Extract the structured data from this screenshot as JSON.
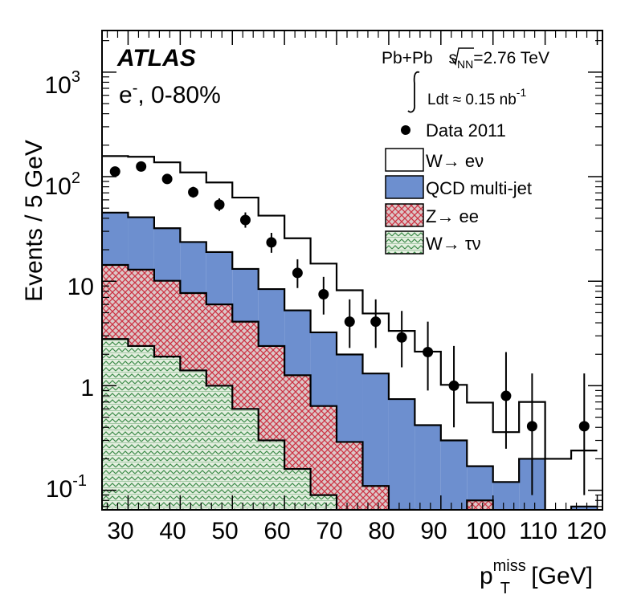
{
  "chart_data": {
    "type": "bar",
    "title": "",
    "experiment": "ATLAS",
    "collision_prefix": "Pb+Pb ",
    "sqrt_s_label": "s",
    "sqrt_s_sub": "NN",
    "energy": "=2.76 TeV",
    "lumi_label": "Ldt ≈ 0.15 nb",
    "lumi_exp": "-1",
    "channel_e": "e",
    "channel_sup": "-",
    "channel_rest": ", 0-80%",
    "ylabel": "Events / 5 GeV",
    "xlabel_p": "p",
    "xlabel_sup": "miss",
    "xlabel_sub": "T",
    "xlabel_unit": " [GeV]",
    "xlim": [
      25,
      121
    ],
    "ylim": [
      0.065,
      2500
    ],
    "yscale": "log",
    "x_ticks": [
      30,
      40,
      50,
      60,
      70,
      80,
      90,
      100,
      110,
      120
    ],
    "x_tick_labels": [
      "30",
      "40",
      "50",
      "60",
      "70",
      "80",
      "90",
      "100",
      "110",
      "120"
    ],
    "y_ticks": [
      {
        "value": 0.1,
        "base": "10",
        "exp": "-1"
      },
      {
        "value": 1,
        "base": "1",
        "exp": ""
      },
      {
        "value": 10,
        "base": "10",
        "exp": ""
      },
      {
        "value": 100,
        "base": "10",
        "exp": "2"
      },
      {
        "value": 1000,
        "base": "10",
        "exp": "3"
      }
    ],
    "bin_edges": [
      25,
      30,
      35,
      40,
      45,
      50,
      55,
      60,
      65,
      70,
      75,
      80,
      85,
      90,
      95,
      100,
      105,
      110,
      115,
      120
    ],
    "stack": [
      {
        "name": "W→ τν",
        "color": "#e4efe0",
        "values": [
          2.8,
          2.4,
          1.9,
          1.4,
          1.0,
          0.6,
          0.3,
          0.16,
          0.09,
          0.06,
          0,
          0,
          0,
          0,
          0,
          0,
          0,
          0,
          0
        ]
      },
      {
        "name": "Z→ ee",
        "color": "#dcc8c8",
        "values": [
          11.5,
          10.5,
          8.2,
          6.3,
          5.0,
          3.5,
          2.1,
          1.1,
          0.55,
          0.23,
          0.11,
          0.065,
          0.05,
          0.05,
          0.08,
          0,
          0,
          0,
          0
        ]
      },
      {
        "name": "QCD multi-jet",
        "color": "#6d8fcf",
        "values": [
          31,
          28,
          22,
          16,
          13,
          9.0,
          6.0,
          4.0,
          2.6,
          1.7,
          1.2,
          0.68,
          0.37,
          0.25,
          0.09,
          0.12,
          0.2,
          0,
          0.07
        ]
      },
      {
        "name": "W→ eν",
        "color": "#ffffff",
        "values": [
          112,
          114,
          105,
          86,
          69,
          50,
          34,
          20.5,
          11.5,
          6.2,
          3.6,
          2.6,
          1.7,
          0.72,
          0.52,
          0.24,
          0.5,
          0.2,
          0.17
        ]
      }
    ],
    "data_points": {
      "name": "Data 2011",
      "x": [
        27.5,
        32.5,
        37.5,
        42.5,
        47.5,
        52.5,
        57.5,
        62.5,
        67.5,
        72.5,
        77.5,
        82.5,
        87.5,
        92.5,
        102.5,
        107.5,
        117.5
      ],
      "y": [
        112,
        125,
        95,
        71,
        54,
        38.5,
        23.5,
        12,
        7.5,
        4.1,
        4.1,
        2.9,
        2.1,
        1.0,
        0.8,
        0.41,
        0.41
      ],
      "err_low": [
        10,
        11,
        9.5,
        8,
        7,
        6,
        4.8,
        3.4,
        2.7,
        1.8,
        1.8,
        1.4,
        1.2,
        0.6,
        0.55,
        0.32,
        0.32
      ],
      "err_high": [
        11,
        12,
        10.5,
        9,
        8,
        7,
        5.5,
        4.2,
        3.5,
        2.6,
        2.6,
        2.3,
        2.0,
        1.4,
        1.3,
        0.9,
        0.9
      ]
    },
    "legend": [
      {
        "label": "Data 2011",
        "kind": "marker"
      },
      {
        "label": "W→ eν",
        "kind": "box",
        "fill": "#ffffff"
      },
      {
        "label": "QCD multi-jet",
        "kind": "box",
        "fill": "#6d8fcf"
      },
      {
        "label": "Z→ ee",
        "kind": "box",
        "fill": "#dcc8c8",
        "pattern": "hatch-z"
      },
      {
        "label": "W→ τν",
        "kind": "box",
        "fill": "#e4efe0",
        "pattern": "hatch-tau"
      }
    ],
    "legend_position": "top-right"
  }
}
